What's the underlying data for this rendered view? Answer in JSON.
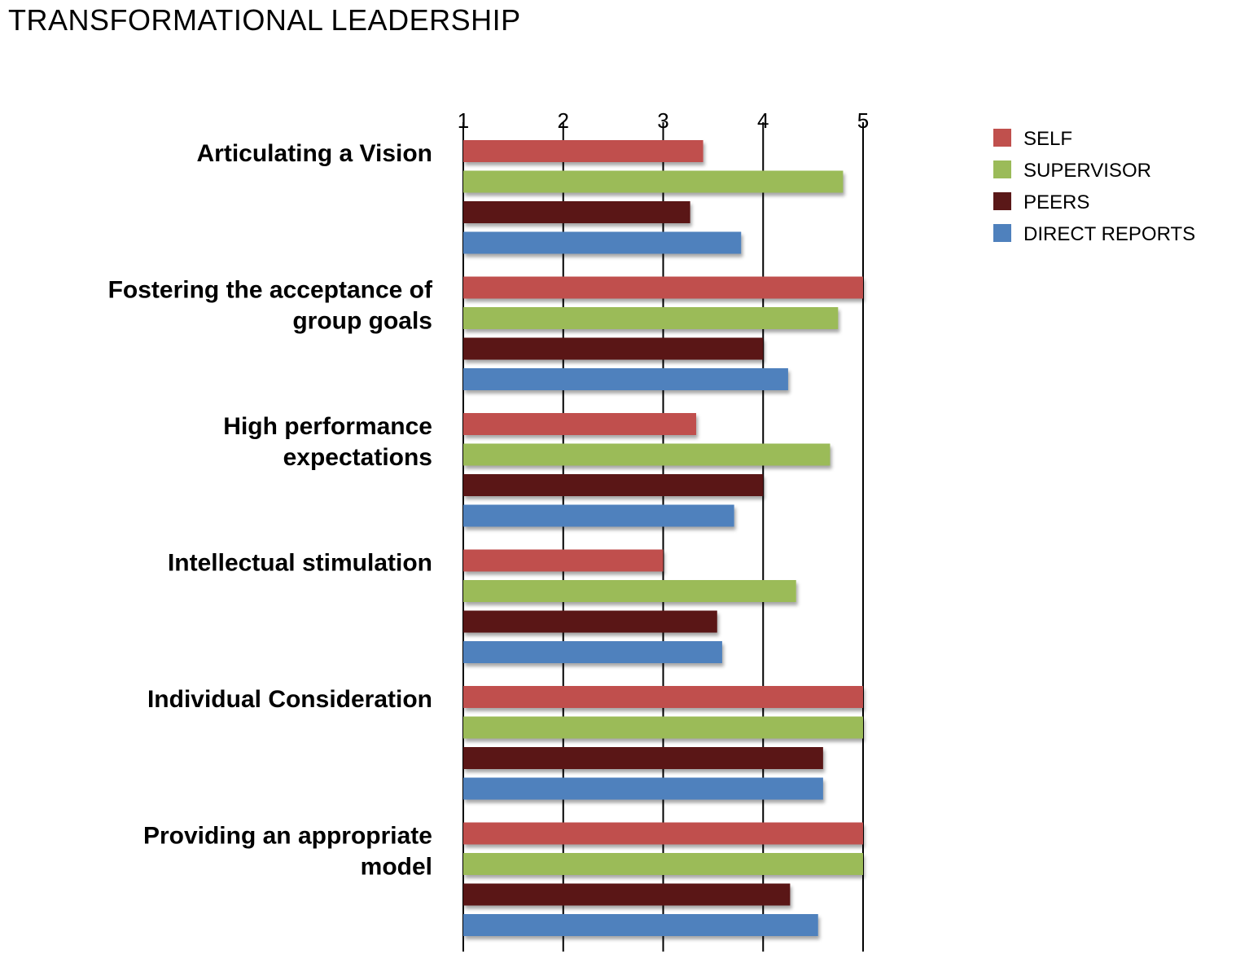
{
  "title": "TRANSFORMATIONAL LEADERSHIP",
  "chart_data": {
    "type": "bar",
    "orientation": "horizontal",
    "xlim": [
      1,
      5
    ],
    "ticks": [
      1,
      2,
      3,
      4,
      5
    ],
    "tick_labels": [
      "1",
      "2",
      "3",
      "4",
      "5"
    ],
    "grid": true,
    "legend_position": "top-right",
    "categories": [
      [
        "Articulating a Vision"
      ],
      [
        "Fostering the acceptance of",
        "group goals"
      ],
      [
        "High performance",
        "expectations"
      ],
      [
        "Intellectual stimulation"
      ],
      [
        "Individual Consideration"
      ],
      [
        "Providing an appropriate",
        "model"
      ]
    ],
    "series": [
      {
        "name": "SELF",
        "color": "#c0504d",
        "values": [
          3.4,
          5.0,
          3.33,
          3.0,
          5.0,
          5.0
        ]
      },
      {
        "name": "SUPERVISOR",
        "color": "#9bbb59",
        "values": [
          4.8,
          4.75,
          4.67,
          4.33,
          5.0,
          5.0
        ]
      },
      {
        "name": "PEERS",
        "color": "#5a1818",
        "values": [
          3.27,
          4.0,
          4.0,
          3.54,
          4.6,
          4.27
        ]
      },
      {
        "name": "DIRECT REPORTS",
        "color": "#4f81bd",
        "values": [
          3.78,
          4.25,
          3.71,
          3.59,
          4.6,
          4.55
        ]
      }
    ]
  }
}
